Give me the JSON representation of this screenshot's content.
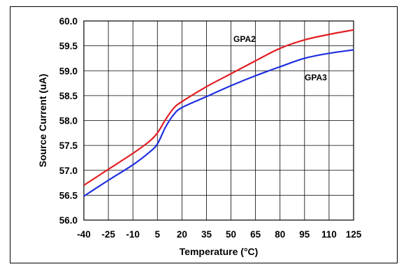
{
  "chart_data": {
    "type": "line",
    "title": "",
    "xlabel": "Temperature (°C)",
    "ylabel": "Source Current (uA)",
    "x_ticks": [
      -40,
      -25,
      -10,
      5,
      20,
      35,
      50,
      65,
      80,
      95,
      110,
      125
    ],
    "y_ticks": [
      "60.0",
      "59.5",
      "59.0",
      "58.5",
      "58.0",
      "57.5",
      "57.0",
      "56.5",
      "56.0"
    ],
    "xlim": [
      -40,
      125
    ],
    "ylim": [
      56.0,
      60.0
    ],
    "grid": true,
    "legend": "inline labels",
    "series": [
      {
        "name": "GPA2",
        "color": "#e31e24",
        "x": [
          -40,
          -25,
          -10,
          0,
          5,
          10,
          15,
          20,
          35,
          50,
          65,
          80,
          95,
          110,
          125
        ],
        "y": [
          56.7,
          57.02,
          57.34,
          57.58,
          57.75,
          58.02,
          58.25,
          58.38,
          58.68,
          58.94,
          59.2,
          59.45,
          59.62,
          59.73,
          59.82
        ]
      },
      {
        "name": "GPA3",
        "color": "#1f2fe0",
        "x": [
          -40,
          -25,
          -10,
          0,
          5,
          10,
          15,
          20,
          35,
          50,
          65,
          80,
          95,
          110,
          125
        ],
        "y": [
          56.48,
          56.8,
          57.11,
          57.36,
          57.53,
          57.87,
          58.12,
          58.26,
          58.48,
          58.7,
          58.9,
          59.08,
          59.25,
          59.35,
          59.42
        ]
      }
    ]
  }
}
